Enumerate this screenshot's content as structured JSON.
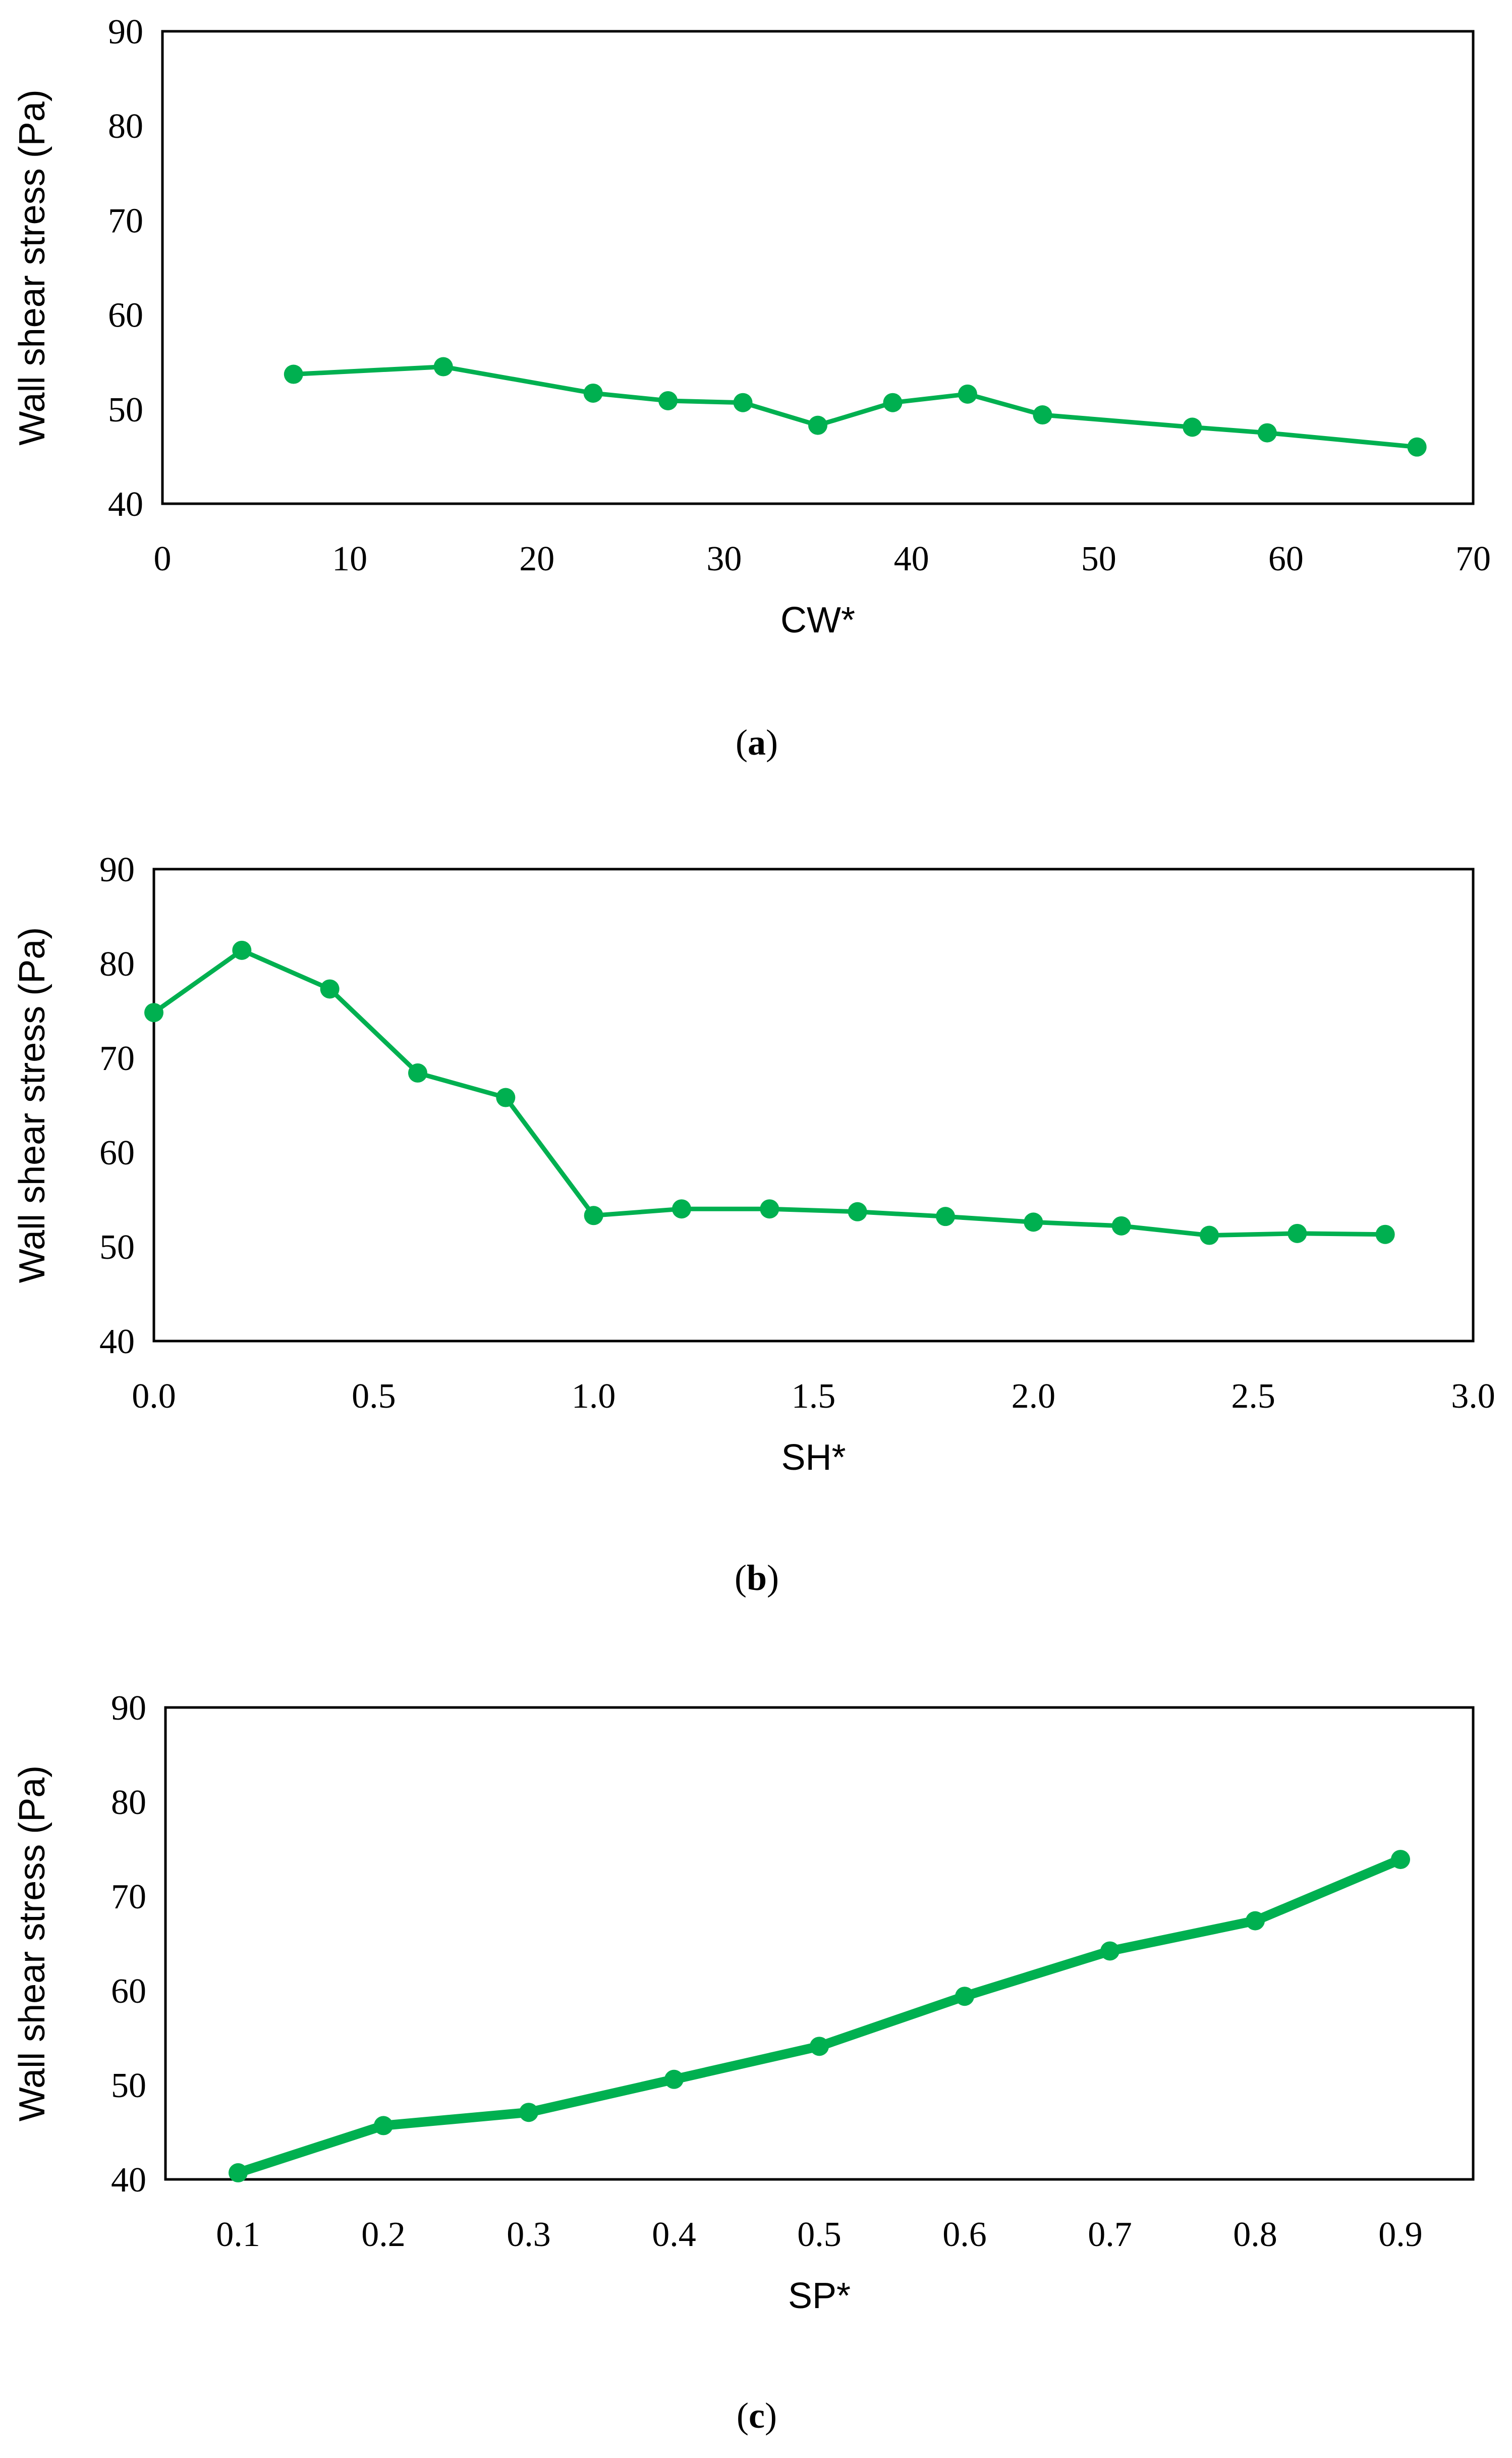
{
  "chart_data": [
    {
      "type": "line",
      "caption": {
        "open": "(",
        "letter": "a",
        "close": ")"
      },
      "title": "",
      "xlabel": "CW*",
      "ylabel": "Wall shear stress (Pa)",
      "xlim": [
        0,
        70
      ],
      "ylim": [
        40,
        90
      ],
      "xticks": [
        0,
        10,
        20,
        30,
        40,
        50,
        60,
        70
      ],
      "xtick_labels": [
        "0",
        "10",
        "20",
        "30",
        "40",
        "50",
        "60",
        "70"
      ],
      "yticks": [
        40,
        50,
        60,
        70,
        80,
        90
      ],
      "ytick_labels": [
        "40",
        "50",
        "60",
        "70",
        "80",
        "90"
      ],
      "color": "#00b050",
      "x": [
        7,
        15,
        23,
        27,
        31,
        35,
        39,
        43,
        47,
        55,
        59,
        67
      ],
      "values": [
        53.7,
        54.5,
        51.7,
        50.9,
        50.7,
        48.3,
        50.7,
        51.6,
        49.4,
        48.1,
        47.5,
        46.0
      ]
    },
    {
      "type": "line",
      "caption": {
        "open": "(",
        "letter": "b",
        "close": ")"
      },
      "title": "",
      "xlabel": "SH*",
      "ylabel": "Wall shear stress (Pa)",
      "xlim": [
        0,
        3
      ],
      "ylim": [
        40,
        90
      ],
      "xticks": [
        0,
        0.5,
        1,
        1.5,
        2,
        2.5,
        3
      ],
      "xtick_labels": [
        "0.0",
        "0.5",
        "1.0",
        "1.5",
        "2.0",
        "2.5",
        "3.0"
      ],
      "yticks": [
        40,
        50,
        60,
        70,
        80,
        90
      ],
      "ytick_labels": [
        "40",
        "50",
        "60",
        "70",
        "80",
        "90"
      ],
      "color": "#00b050",
      "x": [
        0,
        0.2,
        0.4,
        0.6,
        0.8,
        1.0,
        1.2,
        1.4,
        1.6,
        1.8,
        2.0,
        2.2,
        2.4,
        2.6,
        2.8
      ],
      "values": [
        74.8,
        81.4,
        77.3,
        68.4,
        65.8,
        53.3,
        54.0,
        54.0,
        53.7,
        53.2,
        52.6,
        52.2,
        51.2,
        51.4,
        51.3
      ]
    },
    {
      "type": "line",
      "caption": {
        "open": "(",
        "letter": "c",
        "close": ")"
      },
      "title": "",
      "xlabel": "SP*",
      "ylabel": "Wall shear stress (Pa)",
      "xlim": [
        0.05,
        0.95
      ],
      "ylim": [
        40,
        90
      ],
      "xticks": [
        0.1,
        0.2,
        0.3,
        0.4,
        0.5,
        0.6,
        0.7,
        0.8,
        0.9
      ],
      "xtick_labels": [
        "0.1",
        "0.2",
        "0.3",
        "0.4",
        "0.5",
        "0.6",
        "0.7",
        "0.8",
        "0.9"
      ],
      "yticks": [
        40,
        50,
        60,
        70,
        80,
        90
      ],
      "ytick_labels": [
        "40",
        "50",
        "60",
        "70",
        "80",
        "90"
      ],
      "color": "#00b050",
      "x": [
        0.1,
        0.2,
        0.3,
        0.4,
        0.5,
        0.6,
        0.7,
        0.8,
        0.9
      ],
      "values": [
        40.7,
        45.7,
        47.1,
        50.6,
        54.1,
        59.4,
        64.2,
        67.4,
        73.9
      ]
    }
  ]
}
